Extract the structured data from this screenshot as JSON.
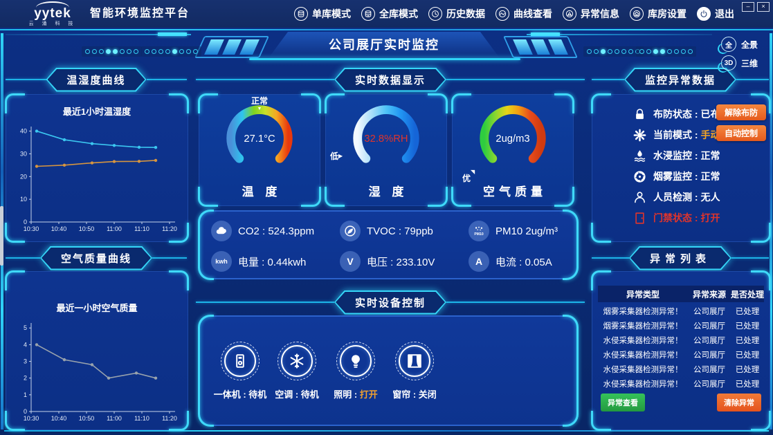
{
  "topbar": {
    "logo": {
      "brand": "yytek",
      "sub": "云 涌 科 技"
    },
    "title": "智能环境监控平台",
    "nav": [
      {
        "id": "single-db-mode",
        "glyph": "db",
        "label": "单库模式"
      },
      {
        "id": "full-db-mode",
        "glyph": "db2",
        "label": "全库模式"
      },
      {
        "id": "history-data",
        "glyph": "history",
        "label": "历史数据"
      },
      {
        "id": "curve-view",
        "glyph": "curve",
        "label": "曲线查看"
      },
      {
        "id": "alert-info",
        "glyph": "alert",
        "label": "异常信息"
      },
      {
        "id": "warehouse-settings",
        "glyph": "warehouse",
        "label": "库房设置"
      },
      {
        "id": "exit",
        "glyph": "power",
        "label": "退出"
      }
    ],
    "window": {
      "minimize": "–",
      "close": "×"
    }
  },
  "header": {
    "title": "公司展厅实时监控",
    "dot_groups": [
      [
        0,
        0,
        0,
        1,
        1,
        0,
        0,
        0
      ],
      [
        0,
        0,
        0,
        0,
        1,
        0,
        0,
        0
      ],
      [
        0,
        0,
        1,
        0,
        0,
        0,
        0,
        0
      ],
      [
        0,
        0,
        1,
        1,
        0,
        0,
        0,
        0
      ]
    ],
    "view_buttons": [
      {
        "id": "panorama-button",
        "icon_text": "全",
        "label": "全景"
      },
      {
        "id": "three-d-button",
        "icon_text": "3D",
        "label": "三维"
      }
    ]
  },
  "left": {
    "panel1_title": "温湿度曲线",
    "panel2_title": "空气质量曲线"
  },
  "chart_data": [
    {
      "type": "line",
      "title": "最近1小时温湿度",
      "xlim": [
        0,
        52
      ],
      "ylim": [
        0,
        42
      ],
      "xticks": [
        {
          "v": 0,
          "label": "10:30"
        },
        {
          "v": 10,
          "label": "10:40"
        },
        {
          "v": 20,
          "label": "10:50"
        },
        {
          "v": 30,
          "label": "11:00"
        },
        {
          "v": 40,
          "label": "11:10"
        },
        {
          "v": 50,
          "label": "11:20"
        }
      ],
      "yticks": [
        0,
        10,
        20,
        30,
        40
      ],
      "x": [
        2,
        12,
        22,
        30,
        39,
        45
      ],
      "series": [
        {
          "name": "湿度",
          "color": "#3bc7f0",
          "values": [
            40,
            36.2,
            34.5,
            33.7,
            32.9,
            32.8
          ]
        },
        {
          "name": "温度",
          "color": "#d6953f",
          "values": [
            24.5,
            25,
            26,
            26.6,
            26.7,
            27.1
          ]
        }
      ],
      "grid": false,
      "legend": "none"
    },
    {
      "type": "line",
      "title": "最近一小时空气质量",
      "xlim": [
        0,
        52
      ],
      "ylim": [
        0,
        5.3
      ],
      "xticks": [
        {
          "v": 0,
          "label": "10:30"
        },
        {
          "v": 10,
          "label": "10:40"
        },
        {
          "v": 20,
          "label": "10:50"
        },
        {
          "v": 30,
          "label": "11:00"
        },
        {
          "v": 40,
          "label": "11:10"
        },
        {
          "v": 50,
          "label": "11:20"
        }
      ],
      "yticks": [
        0,
        1,
        2,
        3,
        4,
        5
      ],
      "x": [
        2,
        12,
        22,
        28,
        38,
        45
      ],
      "series": [
        {
          "name": "空气质量",
          "color": "#98a2ac",
          "values": [
            4,
            3.1,
            2.8,
            2,
            2.3,
            2
          ]
        }
      ],
      "grid": false,
      "legend": "none"
    }
  ],
  "center": {
    "section1_title": "实时数据显示",
    "gauges": [
      {
        "id": "temperature",
        "name": "温 度",
        "value": "27.1°C",
        "status": "正常",
        "status_pos": "top",
        "pointer": "▼",
        "colors": [
          "#4a90d9",
          "#2ec4f0",
          "#7ed321",
          "#c8e02a",
          "#f5a623",
          "#e8380d"
        ]
      },
      {
        "id": "humidity",
        "name": "湿 度",
        "value": "32.8%RH",
        "value_color": "#e0342b",
        "status": "低",
        "status_pos": "left",
        "pointer": "▶",
        "colors": [
          "#f2f9ff",
          "#a8ddf8",
          "#4fc3f7",
          "#2196f3",
          "#1565d8"
        ]
      },
      {
        "id": "air-quality",
        "name": "空气质量",
        "value": "2ug/m3",
        "status": "优",
        "status_pos": "bottom-left",
        "pointer": "◥",
        "colors": [
          "#2ecc40",
          "#8bd630",
          "#e7d417",
          "#f39c12",
          "#e74c1c",
          "#cf3a10"
        ]
      }
    ],
    "sensors": [
      {
        "id": "co2",
        "glyph": "co2",
        "label": "CO2",
        "sep": " : ",
        "value": "524.3ppm"
      },
      {
        "id": "tvoc",
        "glyph": "tvoc",
        "label": "TVOC",
        "sep": " : ",
        "value": "79ppb"
      },
      {
        "id": "pm10",
        "glyph": "pm10",
        "label": "PM10",
        "sep": "  ",
        "value": "2ug/m³"
      },
      {
        "id": "power-usage",
        "glyph": "kwh",
        "label": "电量",
        "sep": " : ",
        "value": "0.44kwh"
      },
      {
        "id": "voltage",
        "glyph": "volt",
        "label": "电压",
        "sep": " :  ",
        "value": "233.10V"
      },
      {
        "id": "current",
        "glyph": "amp",
        "label": "电流",
        "sep": " :  ",
        "value": "0.05A"
      }
    ],
    "section2_title": "实时设备控制",
    "devices": [
      {
        "id": "all-in-one",
        "glyph": "machine",
        "label": "一体机",
        "state": "待机",
        "state_color": "#ffffff"
      },
      {
        "id": "air-conditioner",
        "glyph": "ac",
        "label": "空调",
        "state": "待机",
        "state_color": "#ffffff"
      },
      {
        "id": "lighting",
        "glyph": "light",
        "label": "照明",
        "state": "打开",
        "state_color": "#f0a030"
      },
      {
        "id": "curtain",
        "glyph": "curtain",
        "label": "窗帘",
        "state": "关闭",
        "state_color": "#ffffff"
      }
    ]
  },
  "right": {
    "panel1_title": "监控异常数据",
    "statuses": [
      {
        "id": "arm-status",
        "glyph": "lock",
        "label": "布防状态",
        "value": "已布防",
        "button": "解除布防",
        "button_id": "disarm-button"
      },
      {
        "id": "current-mode",
        "glyph": "gear",
        "label": "当前模式",
        "value": "手动",
        "value_color": "#f5a623",
        "button": "自动控制",
        "button_id": "auto-control-button"
      },
      {
        "id": "water-monitor",
        "glyph": "water",
        "label": "水浸监控",
        "value": "正常"
      },
      {
        "id": "smoke-monitor",
        "glyph": "smoke",
        "label": "烟雾监控",
        "value": "正常"
      },
      {
        "id": "person-detect",
        "glyph": "person",
        "label": "人员检测",
        "value": "无人"
      },
      {
        "id": "door-status",
        "glyph": "door",
        "label": "门禁状态",
        "value": "打开",
        "alert": true
      }
    ],
    "panel2_title": "异常列表",
    "table": {
      "headers": [
        "异常类型",
        "异常来源",
        "是否处理"
      ],
      "rows": [
        [
          "烟雾采集器检测异常！",
          "公司展厅",
          "已处理"
        ],
        [
          "烟雾采集器检测异常！",
          "公司展厅",
          "已处理"
        ],
        [
          "水侵采集器检测异常！",
          "公司展厅",
          "已处理"
        ],
        [
          "水侵采集器检测异常！",
          "公司展厅",
          "已处理"
        ],
        [
          "水侵采集器检测异常！",
          "公司展厅",
          "已处理"
        ],
        [
          "水侵采集器检测异常！",
          "公司展厅",
          "已处理"
        ]
      ]
    },
    "buttons": {
      "view": "异常查看",
      "clear": "清除异常"
    }
  },
  "colors": {
    "accent": "#2fd5f8",
    "orange_button": "#e8622c",
    "green_button": "#2cab47",
    "alert_red": "#e0342b",
    "warn_orange": "#f5a623"
  }
}
